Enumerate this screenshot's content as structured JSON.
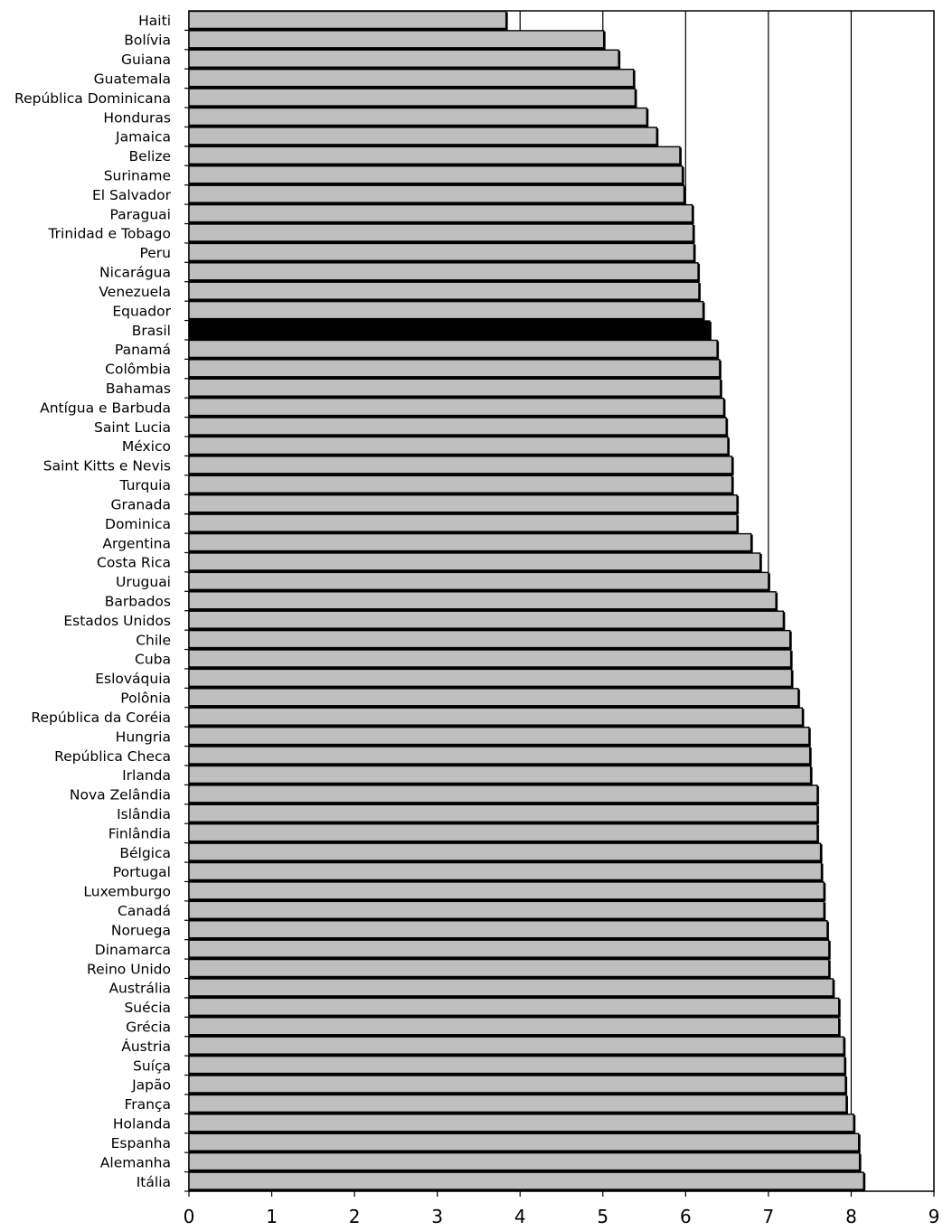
{
  "chart_data": {
    "type": "bar",
    "orientation": "horizontal",
    "categories": [
      "Haiti",
      "Bolívia",
      "Guiana",
      "Guatemala",
      "República Dominicana",
      "Honduras",
      "Jamaica",
      "Belize",
      "Suriname",
      "El Salvador",
      "Paraguai",
      "Trinidad e Tobago",
      "Peru",
      "Nicarágua",
      "Venezuela",
      "Equador",
      "Brasil",
      "Panamá",
      "Colômbia",
      "Bahamas",
      "Antígua e Barbuda",
      "Saint Lucia",
      "México",
      "Saint Kitts e Nevis",
      "Turquia",
      "Granada",
      "Dominica",
      "Argentina",
      "Costa Rica",
      "Uruguai",
      "Barbados",
      "Estados Unidos",
      "Chile",
      "Cuba",
      "Eslováquia",
      "Polônia",
      "República da Coréia",
      "Hungria",
      "República Checa",
      "Irlanda",
      "Nova Zelândia",
      "Islândia",
      "Finlândia",
      "Bélgica",
      "Portugal",
      "Luxemburgo",
      "Canadá",
      "Noruega",
      "Dinamarca",
      "Reino Unido",
      "Austrália",
      "Suécia",
      "Grécia",
      "Áustria",
      "Suíça",
      "Japão",
      "França",
      "Holanda",
      "Espanha",
      "Alemanha",
      "Itália"
    ],
    "values": [
      3.83,
      5.01,
      5.19,
      5.37,
      5.39,
      5.53,
      5.65,
      5.93,
      5.96,
      5.98,
      6.08,
      6.09,
      6.1,
      6.15,
      6.16,
      6.21,
      6.29,
      6.38,
      6.41,
      6.42,
      6.46,
      6.49,
      6.51,
      6.56,
      6.56,
      6.62,
      6.62,
      6.79,
      6.9,
      7.0,
      7.09,
      7.18,
      7.26,
      7.27,
      7.28,
      7.36,
      7.41,
      7.49,
      7.5,
      7.51,
      7.59,
      7.59,
      7.59,
      7.63,
      7.64,
      7.67,
      7.67,
      7.71,
      7.73,
      7.73,
      7.78,
      7.85,
      7.85,
      7.91,
      7.92,
      7.93,
      7.94,
      8.03,
      8.09,
      8.1,
      8.15
    ],
    "highlight_category": "Brasil",
    "colors": {
      "bar": "#bfbfbf",
      "highlight": "#000000",
      "outline": "#000000"
    },
    "xlim": [
      0,
      9
    ],
    "xticks": [
      "0",
      "1",
      "2",
      "3",
      "4",
      "5",
      "6",
      "7",
      "8",
      "9"
    ],
    "vertical_gridlines_at": [
      4,
      5,
      6,
      7,
      8
    ],
    "title": "",
    "xlabel": "",
    "ylabel": "",
    "legend": "none"
  }
}
